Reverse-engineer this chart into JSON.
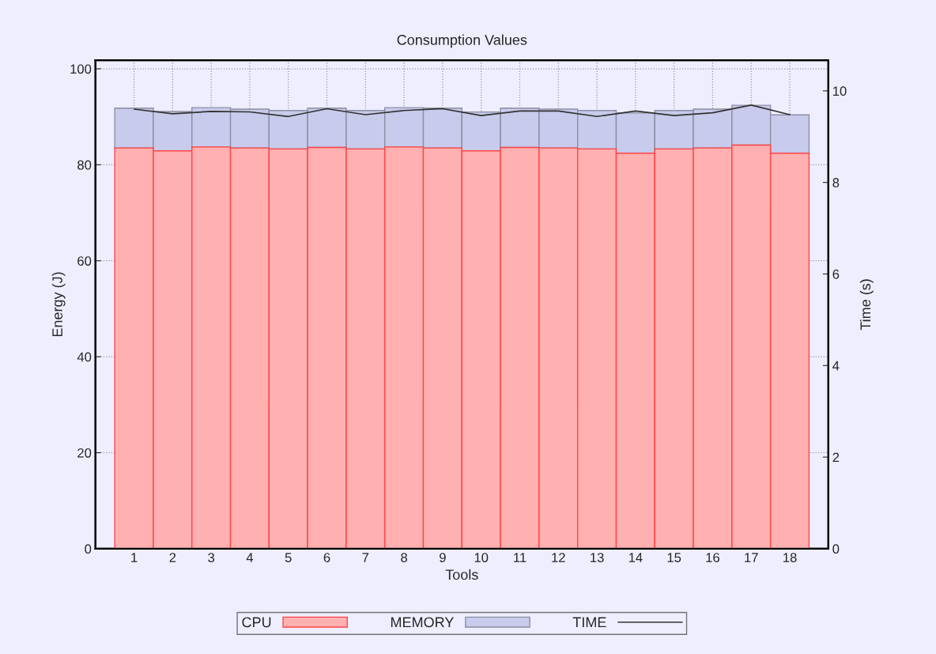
{
  "chart_data": {
    "type": "bar",
    "title": "Consumption Values",
    "xlabel": "Tools",
    "ylabel": "Energy (J)",
    "y2label": "Time (s)",
    "categories": [
      "1",
      "2",
      "3",
      "4",
      "5",
      "6",
      "7",
      "8",
      "9",
      "10",
      "11",
      "12",
      "13",
      "14",
      "15",
      "16",
      "17",
      "18"
    ],
    "stacked": true,
    "series": [
      {
        "name": "CPU",
        "color": "#ffb0b0",
        "values": [
          83.5,
          82.9,
          83.7,
          83.5,
          83.3,
          83.6,
          83.3,
          83.7,
          83.5,
          82.9,
          83.6,
          83.5,
          83.3,
          82.4,
          83.3,
          83.5,
          84.1,
          82.4
        ]
      },
      {
        "name": "MEMORY",
        "color": "#c8cbeb",
        "values": [
          8.3,
          8.2,
          8.2,
          8.1,
          8.0,
          8.2,
          8.0,
          8.2,
          8.3,
          8.1,
          8.2,
          8.1,
          8.0,
          8.4,
          8.0,
          8.1,
          8.3,
          8.0
        ]
      },
      {
        "name": "TIME",
        "type": "line",
        "axis": "y2",
        "color": "#333333",
        "values": [
          9.6,
          9.5,
          9.55,
          9.54,
          9.44,
          9.61,
          9.48,
          9.57,
          9.61,
          9.46,
          9.56,
          9.56,
          9.44,
          9.56,
          9.46,
          9.52,
          9.69,
          9.48
        ]
      }
    ],
    "ylim": [
      0,
      101.8
    ],
    "yticks": [
      0,
      20,
      40,
      60,
      80,
      100
    ],
    "y2lim": [
      0,
      10.67
    ],
    "y2ticks": [
      0,
      2,
      4,
      6,
      8,
      10
    ],
    "grid": true,
    "legend": "bottom",
    "marker": "none",
    "line_style": "solid"
  }
}
